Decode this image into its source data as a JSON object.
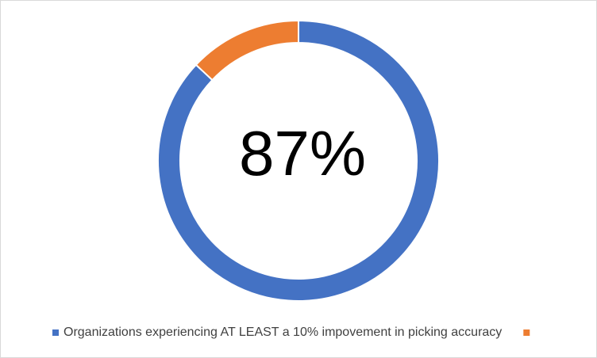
{
  "chart_data": {
    "type": "donut",
    "categories": [
      "Organizations experiencing AT LEAST a 10% impovement in picking accuracy",
      null
    ],
    "values": [
      87,
      13
    ],
    "value_labels": [
      "87%",
      null
    ],
    "colors": [
      "#4472c4",
      "#ed7d31"
    ],
    "legend": "bottom"
  }
}
